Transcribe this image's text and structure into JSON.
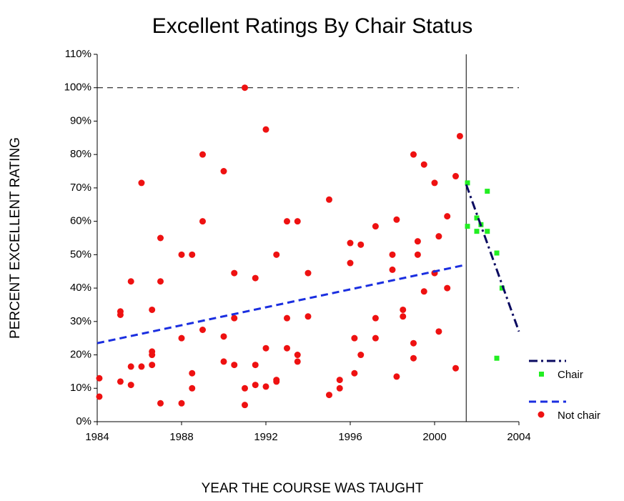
{
  "chart_data": {
    "type": "scatter",
    "title": "Excellent Ratings By Chair Status",
    "xlabel": "YEAR THE COURSE WAS TAUGHT",
    "ylabel": "PERCENT EXCELLENT RATING",
    "xlim": [
      1984,
      2004
    ],
    "ylim": [
      0,
      110
    ],
    "xticks": [
      1984,
      1988,
      1992,
      1996,
      2000,
      2004
    ],
    "yticks": [
      {
        "value": 0,
        "label": "0%"
      },
      {
        "value": 10,
        "label": "10%"
      },
      {
        "value": 20,
        "label": "20%"
      },
      {
        "value": 30,
        "label": "30%"
      },
      {
        "value": 40,
        "label": "40%"
      },
      {
        "value": 50,
        "label": "50%"
      },
      {
        "value": 60,
        "label": "60%"
      },
      {
        "value": 70,
        "label": "70%"
      },
      {
        "value": 80,
        "label": "80%"
      },
      {
        "value": 90,
        "label": "90%"
      },
      {
        "value": 100,
        "label": "100%"
      },
      {
        "value": 110,
        "label": "110%"
      }
    ],
    "hline": 100,
    "vline": 2001.5,
    "legend": "lower right",
    "series": [
      {
        "name": "Chair",
        "color": "#22ee22",
        "marker": "square",
        "trend": {
          "color": "#0a0a60",
          "dash": "dashdot",
          "x": [
            2001.5,
            2004
          ],
          "values": [
            71,
            27
          ]
        },
        "x": [
          2001.56,
          2001.56,
          2002.0,
          2002.0,
          2002.2,
          2002.5,
          2002.5,
          2002.95,
          2002.95,
          2003.2
        ],
        "values": [
          71.5,
          58.5,
          57,
          61,
          59,
          69,
          57,
          50.5,
          19,
          40
        ]
      },
      {
        "name": "Not chair",
        "color": "#ee1111",
        "marker": "circle",
        "trend": {
          "color": "#1a2ee0",
          "dash": "dash",
          "x": [
            1984,
            2001.5
          ],
          "values": [
            23.5,
            47
          ]
        },
        "x": [
          1984.1,
          1984.1,
          1985.1,
          1985.1,
          1985.1,
          1985.6,
          1985.6,
          1985.6,
          1986.1,
          1986.1,
          1986.6,
          1986.6,
          1986.6,
          1986.6,
          1987.0,
          1987.0,
          1987.0,
          1988.0,
          1988.0,
          1988.0,
          1988.5,
          1988.5,
          1988.5,
          1989.0,
          1989.0,
          1989.0,
          1990.0,
          1990.0,
          1990.0,
          1990.5,
          1990.5,
          1990.5,
          1991.0,
          1991.0,
          1991.0,
          1991.5,
          1991.5,
          1991.5,
          1992.0,
          1992.0,
          1992.0,
          1992.5,
          1992.5,
          1992.5,
          1993.0,
          1993.0,
          1993.0,
          1993.5,
          1993.5,
          1993.5,
          1994.0,
          1994.0,
          1995.0,
          1995.0,
          1995.5,
          1995.5,
          1996.0,
          1996.0,
          1996.2,
          1996.2,
          1996.5,
          1996.5,
          1997.2,
          1997.2,
          1997.2,
          1998.0,
          1998.0,
          1998.2,
          1998.2,
          1998.5,
          1998.5,
          1999.0,
          1999.0,
          1999.0,
          1999.2,
          1999.2,
          1999.5,
          1999.5,
          2000.0,
          2000.0,
          2000.2,
          2000.2,
          2000.6,
          2000.6,
          2001.0,
          2001.0,
          2001.2
        ],
        "values": [
          13,
          7.5,
          33,
          32,
          12,
          42,
          16.5,
          11,
          71.5,
          16.5,
          33.5,
          21,
          20,
          17,
          55,
          42,
          5.5,
          50,
          25,
          5.5,
          50,
          14.5,
          10,
          80,
          60,
          27.5,
          75,
          25.5,
          18,
          44.5,
          31,
          17,
          100,
          10,
          5,
          43,
          17,
          11,
          87.5,
          22,
          10.5,
          50,
          12.5,
          12,
          60,
          31,
          22,
          60,
          20,
          18,
          44.5,
          31.5,
          66.5,
          8,
          12.5,
          10,
          53.5,
          47.5,
          25,
          14.5,
          53,
          20,
          58.5,
          31,
          25,
          50,
          45.5,
          60.5,
          13.5,
          33.5,
          31.5,
          80,
          23.5,
          19,
          54,
          50,
          77,
          39,
          71.5,
          44.5,
          55.5,
          27,
          61.5,
          40,
          73.5,
          16,
          85.5
        ]
      }
    ]
  }
}
